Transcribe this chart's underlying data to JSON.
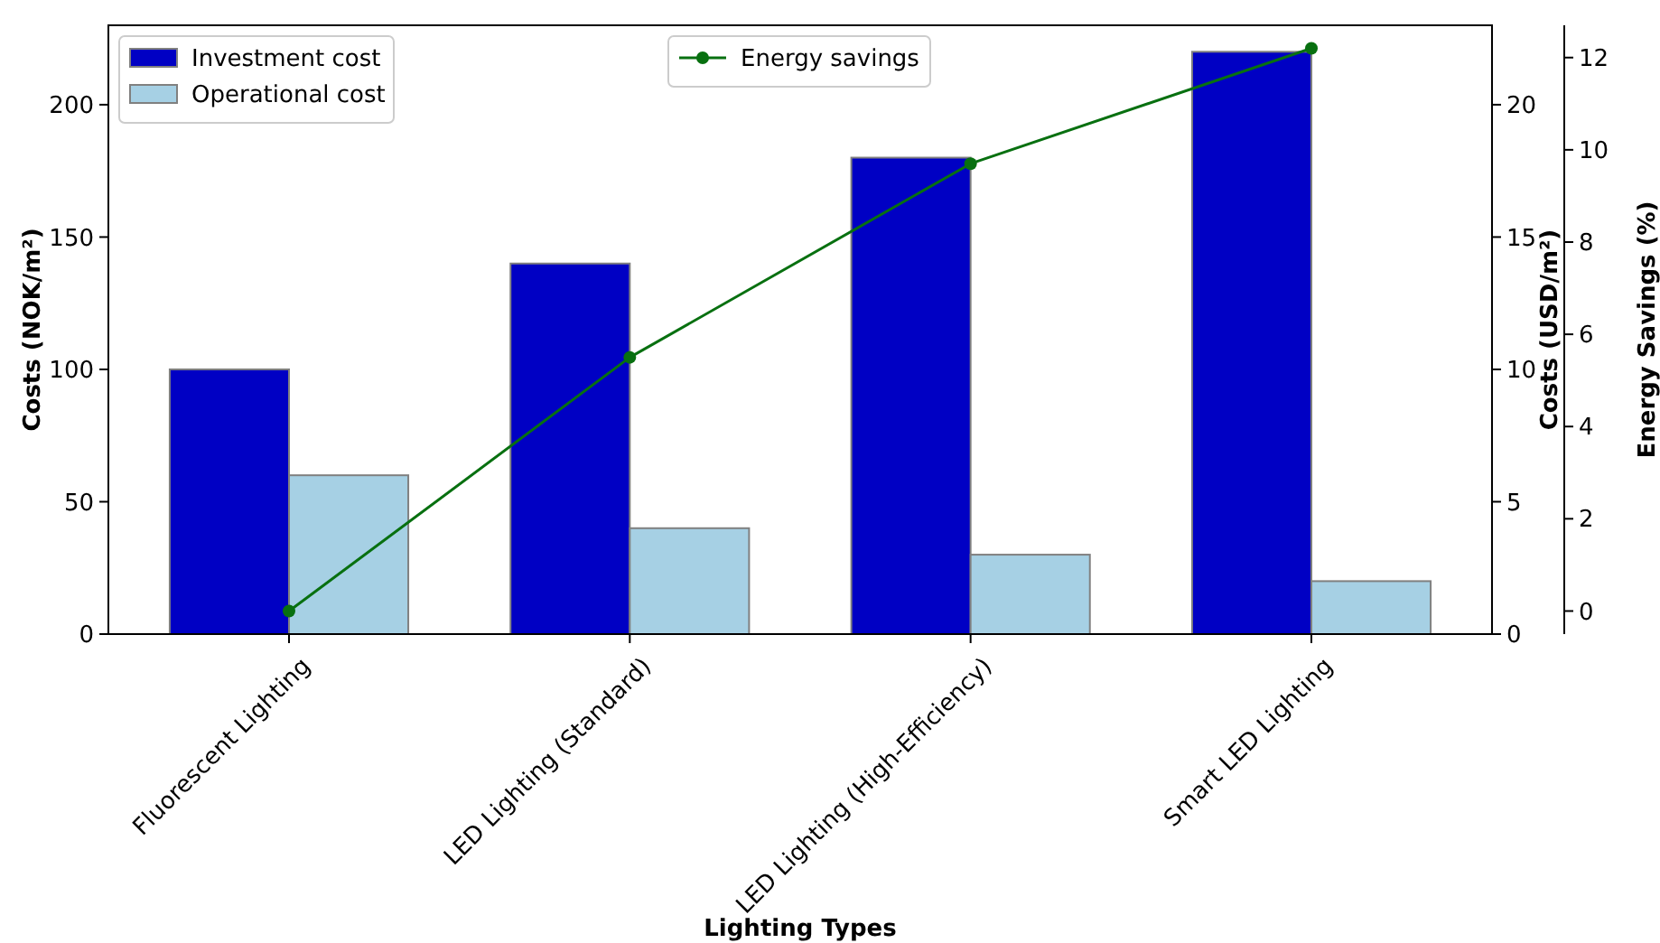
{
  "chart_data": {
    "type": "bar",
    "xlabel": "Lighting Types",
    "ylabel": "Costs (NOK/m²)",
    "y2label": "Costs (USD/m²)",
    "y3label": "Energy Savings (%)",
    "categories": [
      "Fluorescent Lighting",
      "LED Lighting (Standard)",
      "LED Lighting (High-Efficiency)",
      "Smart LED Lighting"
    ],
    "series": [
      {
        "name": "Investment cost",
        "color": "#0000c4",
        "values": [
          100,
          140,
          180,
          220
        ]
      },
      {
        "name": "Operational cost",
        "color": "#a6d0e4",
        "values": [
          60,
          40,
          30,
          20
        ]
      },
      {
        "name": "Energy savings",
        "type": "line",
        "axis": "y3",
        "color": "#087010",
        "values": [
          0,
          5.5,
          9.7,
          12.2
        ]
      }
    ],
    "ylim": [
      0,
      230
    ],
    "yticks": [
      0,
      50,
      100,
      150,
      200
    ],
    "y2lim": [
      0,
      23
    ],
    "y2ticks": [
      0,
      5,
      10,
      15,
      20
    ],
    "y3lim": [
      -0.5,
      12.7
    ],
    "y3ticks": [
      0,
      2,
      4,
      6,
      8,
      10,
      12
    ],
    "legend": "top left",
    "marker": "circle",
    "grid": false
  }
}
